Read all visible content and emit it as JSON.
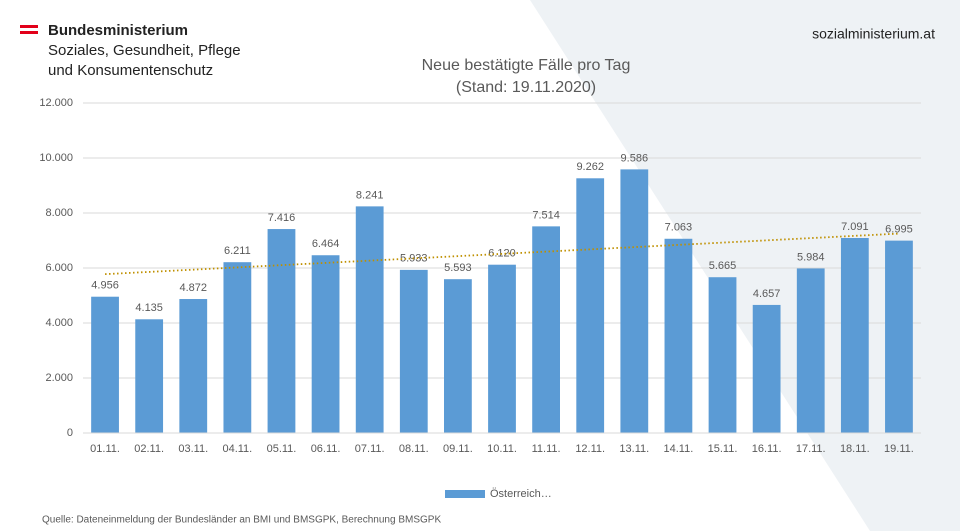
{
  "header": {
    "ministry": "Bundesministerium",
    "ministry_line2": "Soziales, Gesundheit, Pflege",
    "ministry_line3": "und Konsumentenschutz",
    "website": "sozialministerium.at"
  },
  "chart_data": {
    "type": "bar",
    "title": "Neue bestätigte Fälle pro Tag",
    "subtitle": "(Stand: 19.11.2020)",
    "categories": [
      "01.11.",
      "02.11.",
      "03.11.",
      "04.11.",
      "05.11.",
      "06.11.",
      "07.11.",
      "08.11.",
      "09.11.",
      "10.11.",
      "11.11.",
      "12.11.",
      "13.11.",
      "14.11.",
      "15.11.",
      "16.11.",
      "17.11.",
      "18.11.",
      "19.11."
    ],
    "series": [
      {
        "name": "Österreich…",
        "color": "#5b9bd5",
        "values": [
          4956,
          4135,
          4872,
          6211,
          7416,
          6464,
          8241,
          5933,
          5593,
          6120,
          7514,
          9262,
          9586,
          7063,
          5665,
          4657,
          5984,
          7091,
          6995
        ],
        "value_labels": [
          "4.956",
          "4.135",
          "4.872",
          "6.211",
          "7.416",
          "6.464",
          "8.241",
          "5.933",
          "5.593",
          "6.120",
          "7.514",
          "9.262",
          "9.586",
          "7.063",
          "5.665",
          "4.657",
          "5.984",
          "7.091",
          "6.995"
        ]
      }
    ],
    "ylim": [
      0,
      12000
    ],
    "yticks": [
      0,
      {
        "value": 2000,
        "label": "2.000"
      },
      {
        "value": 4000,
        "label": "4.000"
      },
      {
        "value": 6000,
        "label": "6.000"
      },
      {
        "value": 8000,
        "label": "8.000"
      },
      {
        "value": 10000,
        "label": "10.000"
      },
      {
        "value": 12000,
        "label": "12.000"
      }
    ],
    "grid": true,
    "trendline": true,
    "trendline_color": "#bf9000",
    "legend": "bottom"
  },
  "footer": {
    "source": "Quelle: Dateneinmeldung der Bundesländer an BMI und BMSGPK, Berechnung BMSGPK"
  }
}
